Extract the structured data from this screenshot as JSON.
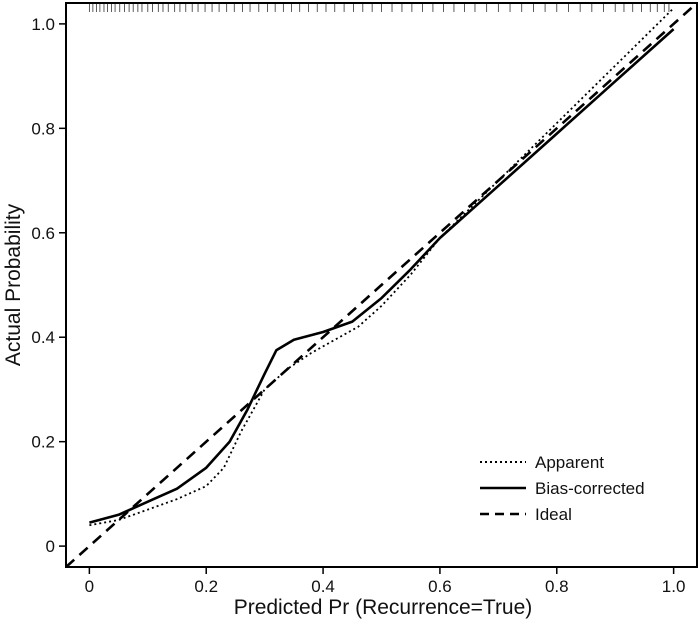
{
  "chart_data": {
    "type": "line",
    "title": "",
    "xlabel": "Predicted Pr (Recurrence=True)",
    "ylabel": "Actual Probability",
    "xlim": [
      -0.04,
      1.04
    ],
    "ylim": [
      -0.04,
      1.04
    ],
    "x_ticks": [
      0,
      0.2,
      0.4,
      0.6,
      0.8,
      1.0
    ],
    "x_tick_labels": [
      "0",
      "0.2",
      "0.4",
      "0.6",
      "0.8",
      "1.0"
    ],
    "y_ticks": [
      0,
      0.2,
      0.4,
      0.6,
      0.8,
      1.0
    ],
    "y_tick_labels": [
      "0",
      "0.2",
      "0.4",
      "0.6",
      "0.8",
      "1.0"
    ],
    "grid": false,
    "legend": {
      "placement": "bottom-right",
      "entries": [
        {
          "label": "Apparent",
          "style": "dotted"
        },
        {
          "label": "Bias-corrected",
          "style": "solid"
        },
        {
          "label": "Ideal",
          "style": "dashed"
        }
      ]
    },
    "series": [
      {
        "name": "Apparent",
        "style": "dotted",
        "x": [
          0.0,
          0.05,
          0.1,
          0.15,
          0.2,
          0.23,
          0.26,
          0.3,
          0.34,
          0.38,
          0.42,
          0.46,
          0.5,
          0.55,
          0.6,
          0.7,
          0.8,
          0.9,
          1.0
        ],
        "y": [
          0.04,
          0.05,
          0.07,
          0.09,
          0.115,
          0.15,
          0.22,
          0.3,
          0.34,
          0.37,
          0.395,
          0.42,
          0.46,
          0.52,
          0.59,
          0.7,
          0.81,
          0.92,
          1.03
        ]
      },
      {
        "name": "Bias-corrected",
        "style": "solid",
        "x": [
          0.0,
          0.05,
          0.1,
          0.15,
          0.2,
          0.24,
          0.27,
          0.3,
          0.32,
          0.35,
          0.4,
          0.45,
          0.5,
          0.55,
          0.6,
          0.7,
          0.8,
          0.9,
          1.0
        ],
        "y": [
          0.045,
          0.06,
          0.085,
          0.11,
          0.15,
          0.2,
          0.26,
          0.33,
          0.375,
          0.395,
          0.41,
          0.43,
          0.475,
          0.53,
          0.59,
          0.69,
          0.79,
          0.89,
          0.99
        ]
      },
      {
        "name": "Ideal",
        "style": "dashed",
        "x": [
          -0.04,
          1.04
        ],
        "y": [
          -0.04,
          1.04
        ]
      }
    ],
    "rug_x": [
      0.0,
      0.006,
      0.012,
      0.018,
      0.025,
      0.031,
      0.038,
      0.044,
      0.052,
      0.06,
      0.068,
      0.075,
      0.083,
      0.09,
      0.1,
      0.108,
      0.118,
      0.126,
      0.135,
      0.146,
      0.155,
      0.165,
      0.176,
      0.186,
      0.198,
      0.21,
      0.222,
      0.235,
      0.248,
      0.262,
      0.275,
      0.29,
      0.305,
      0.318,
      0.332,
      0.346,
      0.36,
      0.375,
      0.39,
      0.405,
      0.42,
      0.436,
      0.452,
      0.468,
      0.484,
      0.5,
      0.518,
      0.535,
      0.552,
      0.57,
      0.588,
      0.606,
      0.624,
      0.642,
      0.66,
      0.68,
      0.7,
      0.72,
      0.74,
      0.76,
      0.78,
      0.8,
      0.82,
      0.84,
      0.86,
      0.88,
      0.9,
      0.915,
      0.93,
      0.945,
      0.96,
      0.972,
      0.984,
      0.992
    ]
  }
}
